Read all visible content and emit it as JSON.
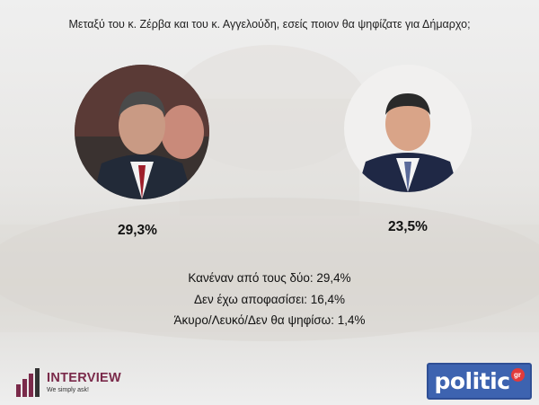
{
  "question": "Μεταξύ του κ. Ζέρβα και του κ. Αγγελούδη, εσείς ποιον θα ψηφίζατε για Δήμαρχο;",
  "chart_data": {
    "type": "bar",
    "title": "Μεταξύ του κ. Ζέρβα και του κ. Αγγελούδη, εσείς ποιον θα ψηφίζατε για Δήμαρχο;",
    "categories": [
      "",
      ""
    ],
    "values": [
      29.3,
      23.5
    ],
    "value_labels": [
      "29,3%",
      "23,5%"
    ],
    "unit": "%"
  },
  "other_results": [
    "Κανέναν από τους δύο: 29,4%",
    "Δεν έχω αποφασίσει: 16,4%",
    "Άκυρο/Λευκό/Δεν θα ψηφίσω: 1,4%"
  ],
  "logos": {
    "interview_name": "INTERVIEW",
    "interview_tagline": "We simply ask!",
    "politic_name": "politic",
    "politic_badge": "gr"
  },
  "colors": {
    "interview_brand": "#7a2a4a",
    "politic_brand": "#3d63b0",
    "politic_badge": "#e23b3b"
  }
}
